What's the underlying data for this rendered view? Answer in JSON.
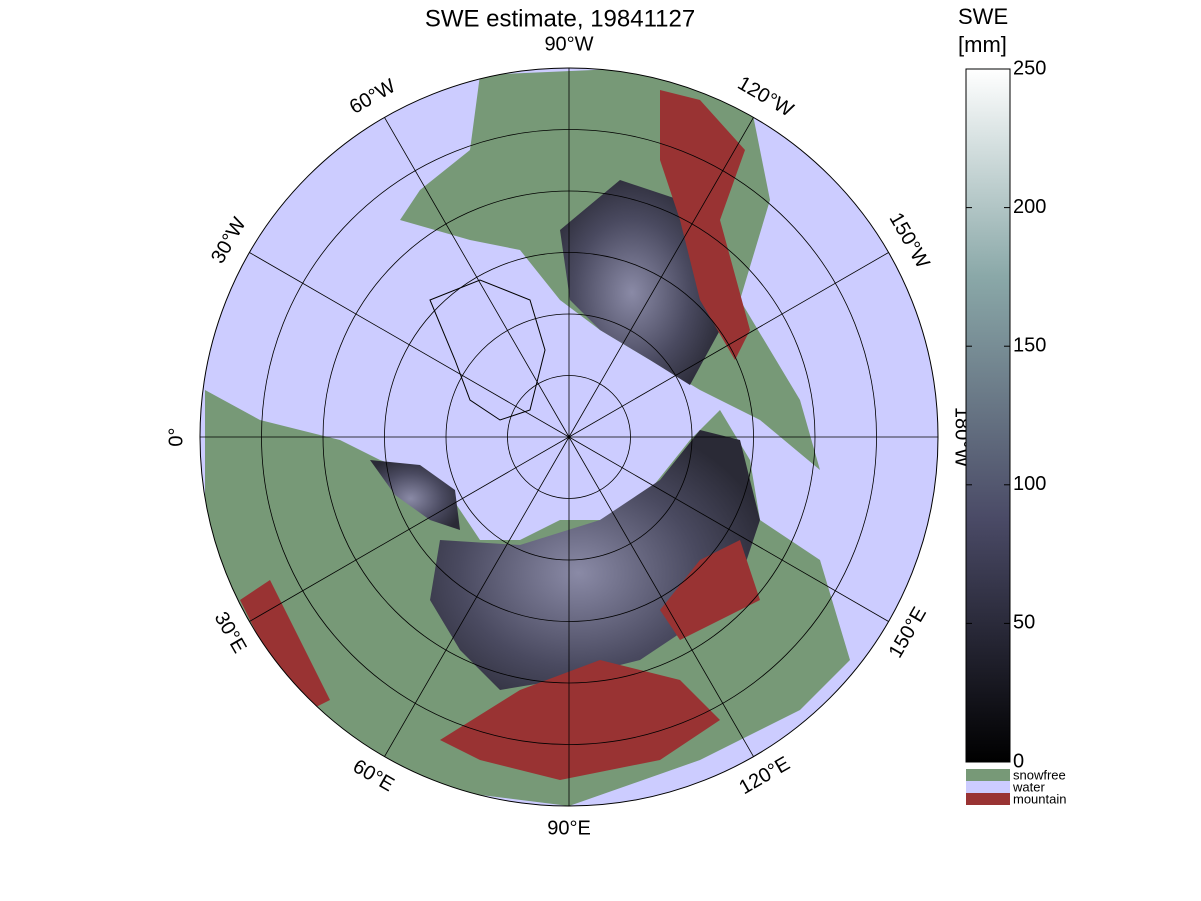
{
  "title": "SWE estimate, 19841127",
  "map": {
    "longitude_labels": [
      "90°W",
      "120°W",
      "150°W",
      "180°W",
      "150°E",
      "120°E",
      "90°E",
      "60°E",
      "30°E",
      "0°",
      "30°W",
      "60°W"
    ]
  },
  "colorbar": {
    "title": [
      "SWE",
      "[mm]"
    ],
    "lim": [
      0,
      250
    ],
    "ticks": [
      0,
      50,
      100,
      150,
      200,
      250
    ]
  },
  "legend": [
    "snowfree",
    "water",
    "mountain"
  ]
}
